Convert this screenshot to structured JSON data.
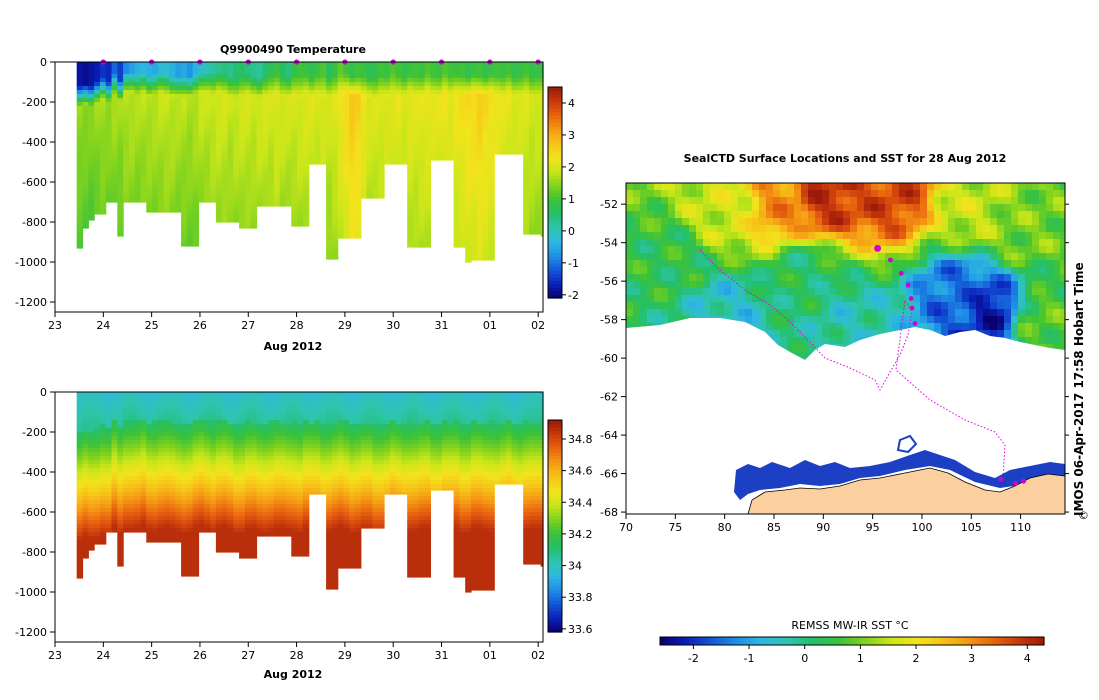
{
  "colors": {
    "palette": [
      "#08006e",
      "#0a1fb8",
      "#1456d6",
      "#1f8fe6",
      "#2eb8e0",
      "#2ec4b0",
      "#25bf6a",
      "#3cc23a",
      "#7fd21e",
      "#c8e61a",
      "#f2e41c",
      "#f6c418",
      "#f59a14",
      "#e8650f",
      "#c93a0c",
      "#9b1a08"
    ],
    "land": "#fbcf9e",
    "track": "#e000e0",
    "marker": "#d400d4"
  },
  "chart_data": [
    {
      "id": "temperature",
      "type": "heatmap",
      "title": "Q9900490  Temperature",
      "xlabel": "Aug 2012",
      "ylabel": "",
      "xticks": [
        "23",
        "24",
        "25",
        "26",
        "27",
        "28",
        "29",
        "30",
        "31",
        "01",
        "02"
      ],
      "xlim": [
        23,
        33.1
      ],
      "yticks": [
        "0",
        "-200",
        "-400",
        "-600",
        "-800",
        "-1000",
        "-1200"
      ],
      "ylim": [
        -1250,
        0
      ],
      "colorbar": {
        "ticks": [
          "4",
          "3",
          "2",
          "1",
          "0",
          "-1",
          "-2"
        ],
        "range": [
          -2.1,
          4.5
        ]
      },
      "profile_markers": [
        24,
        25,
        26,
        27,
        28,
        29,
        30,
        31,
        32,
        33
      ],
      "profiles": [
        {
          "x": 23.45,
          "w": 0.12,
          "depth": 930,
          "surface": -1.8,
          "thermo": 170,
          "deep": 1.6
        },
        {
          "x": 23.57,
          "w": 0.12,
          "depth": 830,
          "surface": -1.9,
          "thermo": 160,
          "deep": 1.55
        },
        {
          "x": 23.69,
          "w": 0.12,
          "depth": 790,
          "surface": -1.8,
          "thermo": 170,
          "deep": 1.5
        },
        {
          "x": 23.81,
          "w": 0.12,
          "depth": 760,
          "surface": -1.7,
          "thermo": 150,
          "deep": 1.6
        },
        {
          "x": 23.93,
          "w": 0.12,
          "depth": 760,
          "surface": -1.5,
          "thermo": 130,
          "deep": 1.7
        },
        {
          "x": 24.05,
          "w": 0.12,
          "depth": 700,
          "surface": -1.6,
          "thermo": 150,
          "deep": 1.6
        },
        {
          "x": 24.17,
          "w": 0.12,
          "depth": 700,
          "surface": -1.1,
          "thermo": 110,
          "deep": 1.7
        },
        {
          "x": 24.29,
          "w": 0.12,
          "depth": 870,
          "surface": -1.4,
          "thermo": 140,
          "deep": 1.65
        },
        {
          "x": 24.41,
          "w": 0.12,
          "depth": 700,
          "surface": -0.8,
          "thermo": 100,
          "deep": 1.8
        },
        {
          "x": 24.53,
          "w": 0.12,
          "depth": 700,
          "surface": -0.6,
          "thermo": 100,
          "deep": 1.8
        },
        {
          "x": 24.65,
          "w": 0.12,
          "depth": 700,
          "surface": -0.4,
          "thermo": 110,
          "deep": 1.75
        },
        {
          "x": 24.77,
          "w": 0.12,
          "depth": 700,
          "surface": -0.3,
          "thermo": 100,
          "deep": 1.8
        },
        {
          "x": 24.89,
          "w": 0.12,
          "depth": 750,
          "surface": -0.4,
          "thermo": 120,
          "deep": 1.8
        },
        {
          "x": 25.01,
          "w": 0.12,
          "depth": 750,
          "surface": -0.5,
          "thermo": 110,
          "deep": 1.8
        },
        {
          "x": 25.13,
          "w": 0.12,
          "depth": 750,
          "surface": -0.3,
          "thermo": 100,
          "deep": 1.85
        },
        {
          "x": 25.25,
          "w": 0.12,
          "depth": 750,
          "surface": -0.2,
          "thermo": 110,
          "deep": 1.9
        },
        {
          "x": 25.37,
          "w": 0.12,
          "depth": 750,
          "surface": -0.4,
          "thermo": 120,
          "deep": 1.85
        },
        {
          "x": 25.49,
          "w": 0.12,
          "depth": 750,
          "surface": -0.6,
          "thermo": 120,
          "deep": 1.8
        },
        {
          "x": 25.61,
          "w": 0.12,
          "depth": 920,
          "surface": -0.5,
          "thermo": 120,
          "deep": 1.8
        },
        {
          "x": 25.73,
          "w": 0.12,
          "depth": 920,
          "surface": -0.7,
          "thermo": 120,
          "deep": 1.75
        },
        {
          "x": 25.85,
          "w": 0.12,
          "depth": 920,
          "surface": -0.4,
          "thermo": 110,
          "deep": 1.8
        },
        {
          "x": 25.97,
          "w": 0.12,
          "depth": 700,
          "surface": -0.1,
          "thermo": 100,
          "deep": 1.9
        },
        {
          "x": 26.09,
          "w": 0.12,
          "depth": 700,
          "surface": 0.0,
          "thermo": 100,
          "deep": 1.9
        },
        {
          "x": 26.21,
          "w": 0.12,
          "depth": 700,
          "surface": 0.2,
          "thermo": 110,
          "deep": 1.95
        },
        {
          "x": 26.33,
          "w": 0.12,
          "depth": 800,
          "surface": 0.3,
          "thermo": 100,
          "deep": 2.0
        },
        {
          "x": 26.45,
          "w": 0.12,
          "depth": 800,
          "surface": 0.4,
          "thermo": 110,
          "deep": 2.0
        },
        {
          "x": 26.57,
          "w": 0.12,
          "depth": 800,
          "surface": 0.3,
          "thermo": 120,
          "deep": 1.9
        },
        {
          "x": 26.69,
          "w": 0.12,
          "depth": 800,
          "surface": 0.5,
          "thermo": 130,
          "deep": 1.95
        },
        {
          "x": 26.81,
          "w": 0.12,
          "depth": 830,
          "surface": 0.6,
          "thermo": 120,
          "deep": 2.0
        },
        {
          "x": 26.93,
          "w": 0.12,
          "depth": 830,
          "surface": 0.4,
          "thermo": 110,
          "deep": 2.0
        },
        {
          "x": 27.05,
          "w": 0.12,
          "depth": 830,
          "surface": 0.3,
          "thermo": 120,
          "deep": 1.95
        },
        {
          "x": 27.17,
          "w": 0.12,
          "depth": 720,
          "surface": 0.2,
          "thermo": 130,
          "deep": 2.0
        },
        {
          "x": 27.29,
          "w": 0.12,
          "depth": 720,
          "surface": 0.5,
          "thermo": 120,
          "deep": 2.05
        },
        {
          "x": 27.41,
          "w": 0.12,
          "depth": 720,
          "surface": 0.7,
          "thermo": 110,
          "deep": 2.0
        },
        {
          "x": 27.53,
          "w": 0.12,
          "depth": 720,
          "surface": 0.9,
          "thermo": 110,
          "deep": 2.1
        },
        {
          "x": 27.65,
          "w": 0.12,
          "depth": 720,
          "surface": 0.6,
          "thermo": 120,
          "deep": 2.0
        },
        {
          "x": 27.77,
          "w": 0.12,
          "depth": 720,
          "surface": 0.4,
          "thermo": 120,
          "deep": 2.0
        },
        {
          "x": 27.89,
          "w": 0.12,
          "depth": 820,
          "surface": 0.8,
          "thermo": 110,
          "deep": 2.0
        },
        {
          "x": 28.01,
          "w": 0.12,
          "depth": 820,
          "surface": 1.0,
          "thermo": 120,
          "deep": 2.05
        },
        {
          "x": 28.13,
          "w": 0.12,
          "depth": 820,
          "surface": 0.9,
          "thermo": 110,
          "deep": 2.1
        },
        {
          "x": 28.25,
          "w": 0.12,
          "depth": 510,
          "surface": 0.7,
          "thermo": 120,
          "deep": 2.1
        },
        {
          "x": 28.37,
          "w": 0.12,
          "depth": 510,
          "surface": 0.9,
          "thermo": 110,
          "deep": 2.05
        },
        {
          "x": 28.49,
          "w": 0.12,
          "depth": 510,
          "surface": 1.1,
          "thermo": 120,
          "deep": 2.1
        },
        {
          "x": 28.61,
          "w": 0.12,
          "depth": 985,
          "surface": 0.6,
          "thermo": 120,
          "deep": 2.0
        },
        {
          "x": 28.73,
          "w": 0.12,
          "depth": 985,
          "surface": 0.9,
          "thermo": 120,
          "deep": 2.1
        },
        {
          "x": 28.85,
          "w": 0.12,
          "depth": 880,
          "surface": 1.2,
          "thermo": 110,
          "deep": 2.3
        },
        {
          "x": 28.97,
          "w": 0.12,
          "depth": 880,
          "surface": 1.0,
          "thermo": 110,
          "deep": 2.5
        },
        {
          "x": 29.09,
          "w": 0.12,
          "depth": 880,
          "surface": 0.8,
          "thermo": 120,
          "deep": 2.7
        },
        {
          "x": 29.21,
          "w": 0.12,
          "depth": 880,
          "surface": 1.0,
          "thermo": 120,
          "deep": 2.6
        },
        {
          "x": 29.33,
          "w": 0.12,
          "depth": 680,
          "surface": 0.9,
          "thermo": 120,
          "deep": 2.3
        },
        {
          "x": 29.45,
          "w": 0.12,
          "depth": 680,
          "surface": 0.7,
          "thermo": 120,
          "deep": 2.1
        },
        {
          "x": 29.57,
          "w": 0.12,
          "depth": 680,
          "surface": 0.8,
          "thermo": 130,
          "deep": 2.1
        },
        {
          "x": 29.69,
          "w": 0.12,
          "depth": 680,
          "surface": 1.0,
          "thermo": 120,
          "deep": 2.1
        },
        {
          "x": 29.81,
          "w": 0.12,
          "depth": 510,
          "surface": 0.9,
          "thermo": 120,
          "deep": 2.15
        },
        {
          "x": 29.93,
          "w": 0.12,
          "depth": 510,
          "surface": 1.1,
          "thermo": 110,
          "deep": 2.1
        },
        {
          "x": 30.05,
          "w": 0.12,
          "depth": 510,
          "surface": 1.0,
          "thermo": 120,
          "deep": 2.2
        },
        {
          "x": 30.17,
          "w": 0.12,
          "depth": 510,
          "surface": 0.8,
          "thermo": 120,
          "deep": 2.1
        },
        {
          "x": 30.29,
          "w": 0.12,
          "depth": 925,
          "surface": 0.9,
          "thermo": 110,
          "deep": 2.2
        },
        {
          "x": 30.41,
          "w": 0.12,
          "depth": 925,
          "surface": 1.0,
          "thermo": 120,
          "deep": 2.15
        },
        {
          "x": 30.53,
          "w": 0.12,
          "depth": 925,
          "surface": 0.9,
          "thermo": 120,
          "deep": 2.2
        },
        {
          "x": 30.65,
          "w": 0.12,
          "depth": 925,
          "surface": 1.1,
          "thermo": 110,
          "deep": 2.25
        },
        {
          "x": 30.77,
          "w": 0.12,
          "depth": 490,
          "surface": 1.0,
          "thermo": 120,
          "deep": 2.2
        },
        {
          "x": 30.89,
          "w": 0.12,
          "depth": 490,
          "surface": 0.9,
          "thermo": 120,
          "deep": 2.2
        },
        {
          "x": 31.01,
          "w": 0.12,
          "depth": 490,
          "surface": 1.1,
          "thermo": 110,
          "deep": 2.3
        },
        {
          "x": 31.13,
          "w": 0.12,
          "depth": 490,
          "surface": 1.0,
          "thermo": 120,
          "deep": 2.2
        },
        {
          "x": 31.25,
          "w": 0.12,
          "depth": 925,
          "surface": 0.9,
          "thermo": 110,
          "deep": 2.3
        },
        {
          "x": 31.37,
          "w": 0.12,
          "depth": 925,
          "surface": 1.0,
          "thermo": 120,
          "deep": 2.4
        },
        {
          "x": 31.49,
          "w": 0.12,
          "depth": 1000,
          "surface": 0.8,
          "thermo": 120,
          "deep": 2.5
        },
        {
          "x": 31.61,
          "w": 0.12,
          "depth": 990,
          "surface": 0.9,
          "thermo": 110,
          "deep": 2.5
        },
        {
          "x": 31.73,
          "w": 0.12,
          "depth": 990,
          "surface": 1.0,
          "thermo": 120,
          "deep": 2.6
        },
        {
          "x": 31.85,
          "w": 0.12,
          "depth": 990,
          "surface": 0.8,
          "thermo": 120,
          "deep": 2.5
        },
        {
          "x": 31.97,
          "w": 0.12,
          "depth": 990,
          "surface": 0.9,
          "thermo": 110,
          "deep": 2.4
        },
        {
          "x": 32.09,
          "w": 0.12,
          "depth": 460,
          "surface": 1.0,
          "thermo": 120,
          "deep": 2.3
        },
        {
          "x": 32.21,
          "w": 0.12,
          "depth": 460,
          "surface": 0.9,
          "thermo": 120,
          "deep": 2.2
        },
        {
          "x": 32.33,
          "w": 0.12,
          "depth": 460,
          "surface": 1.0,
          "thermo": 110,
          "deep": 2.2
        },
        {
          "x": 32.45,
          "w": 0.12,
          "depth": 460,
          "surface": 0.8,
          "thermo": 120,
          "deep": 2.1
        },
        {
          "x": 32.57,
          "w": 0.12,
          "depth": 460,
          "surface": 0.9,
          "thermo": 120,
          "deep": 2.1
        },
        {
          "x": 32.69,
          "w": 0.12,
          "depth": 860,
          "surface": 1.0,
          "thermo": 110,
          "deep": 2.1
        },
        {
          "x": 32.81,
          "w": 0.12,
          "depth": 860,
          "surface": 0.8,
          "thermo": 120,
          "deep": 2.0
        },
        {
          "x": 32.93,
          "w": 0.12,
          "depth": 860,
          "surface": 0.9,
          "thermo": 120,
          "deep": 2.0
        },
        {
          "x": 33.05,
          "w": 0.05,
          "depth": 870,
          "surface": 0.8,
          "thermo": 110,
          "deep": 2.0
        }
      ]
    },
    {
      "id": "salinity",
      "type": "heatmap",
      "title": "",
      "xlabel": "Aug 2012",
      "ylabel": "",
      "xticks": [
        "23",
        "24",
        "25",
        "26",
        "27",
        "28",
        "29",
        "30",
        "31",
        "01",
        "02"
      ],
      "xlim": [
        23,
        33.1
      ],
      "yticks": [
        "0",
        "-200",
        "-400",
        "-600",
        "-800",
        "-1000",
        "-1200"
      ],
      "ylim": [
        -1250,
        0
      ],
      "colorbar": {
        "ticks": [
          "34.8",
          "34.6",
          "34.4",
          "34.2",
          "34",
          "33.8",
          "33.6"
        ],
        "range": [
          33.58,
          34.92
        ]
      },
      "note": "same profile set as temperature; salinity rises from ~34.0 at surface to ~34.85 at depth"
    },
    {
      "id": "sst_map",
      "type": "heatmap",
      "title": "SealCTD Surface Locations and SST for 28 Aug 2012",
      "xlabel": "",
      "ylabel": "",
      "xticks": [
        "70",
        "75",
        "80",
        "85",
        "90",
        "95",
        "100",
        "105",
        "110"
      ],
      "xlim": [
        70,
        114.5
      ],
      "yticks": [
        "-52",
        "-54",
        "-56",
        "-58",
        "-60",
        "-62",
        "-64",
        "-66",
        "-68"
      ],
      "ylim": [
        -68.1,
        -50.9
      ],
      "colorbar": {
        "label": "REMSS MW-IR SST °C",
        "ticks": [
          "-2",
          "-1",
          "0",
          "1",
          "2",
          "3",
          "4"
        ],
        "range": [
          -2.6,
          4.3
        ]
      },
      "surface_locations": [
        {
          "lon": 95.5,
          "lat": -54.3
        },
        {
          "lon": 96.8,
          "lat": -54.9
        },
        {
          "lon": 97.9,
          "lat": -55.6
        },
        {
          "lon": 98.6,
          "lat": -56.2
        },
        {
          "lon": 98.9,
          "lat": -56.9
        },
        {
          "lon": 99.0,
          "lat": -57.4
        },
        {
          "lon": 99.3,
          "lat": -58.2
        },
        {
          "lon": 108.0,
          "lat": -66.3
        },
        {
          "lon": 109.5,
          "lat": -66.5
        },
        {
          "lon": 110.3,
          "lat": -66.4
        }
      ],
      "sst_features": [
        {
          "lon": 90.0,
          "lat": -51.8,
          "value": 3.9
        },
        {
          "lon": 86.0,
          "lat": -52.2,
          "value": 3.0
        },
        {
          "lon": 97.0,
          "lat": -51.6,
          "value": 3.7
        },
        {
          "lon": 80.0,
          "lat": -52.5,
          "value": 1.6
        },
        {
          "lon": 105.0,
          "lat": -52.5,
          "value": 1.5
        },
        {
          "lon": 110.0,
          "lat": -53.5,
          "value": 1.0
        },
        {
          "lon": 75.0,
          "lat": -55.0,
          "value": 0.4
        },
        {
          "lon": 88.0,
          "lat": -55.5,
          "value": 0.2
        },
        {
          "lon": 104.0,
          "lat": -56.5,
          "value": -1.5
        },
        {
          "lon": 107.0,
          "lat": -57.5,
          "value": -2.2
        },
        {
          "lon": 80.0,
          "lat": -57.5,
          "value": -0.5
        },
        {
          "lon": 93.0,
          "lat": -58.0,
          "value": -0.3
        },
        {
          "lon": 112.0,
          "lat": -58.0,
          "value": 0.8
        }
      ]
    }
  ],
  "stamp": {
    "side_label": "IMOS 06-Apr-2017 17:58 Hobart Time",
    "copyright": "©"
  }
}
